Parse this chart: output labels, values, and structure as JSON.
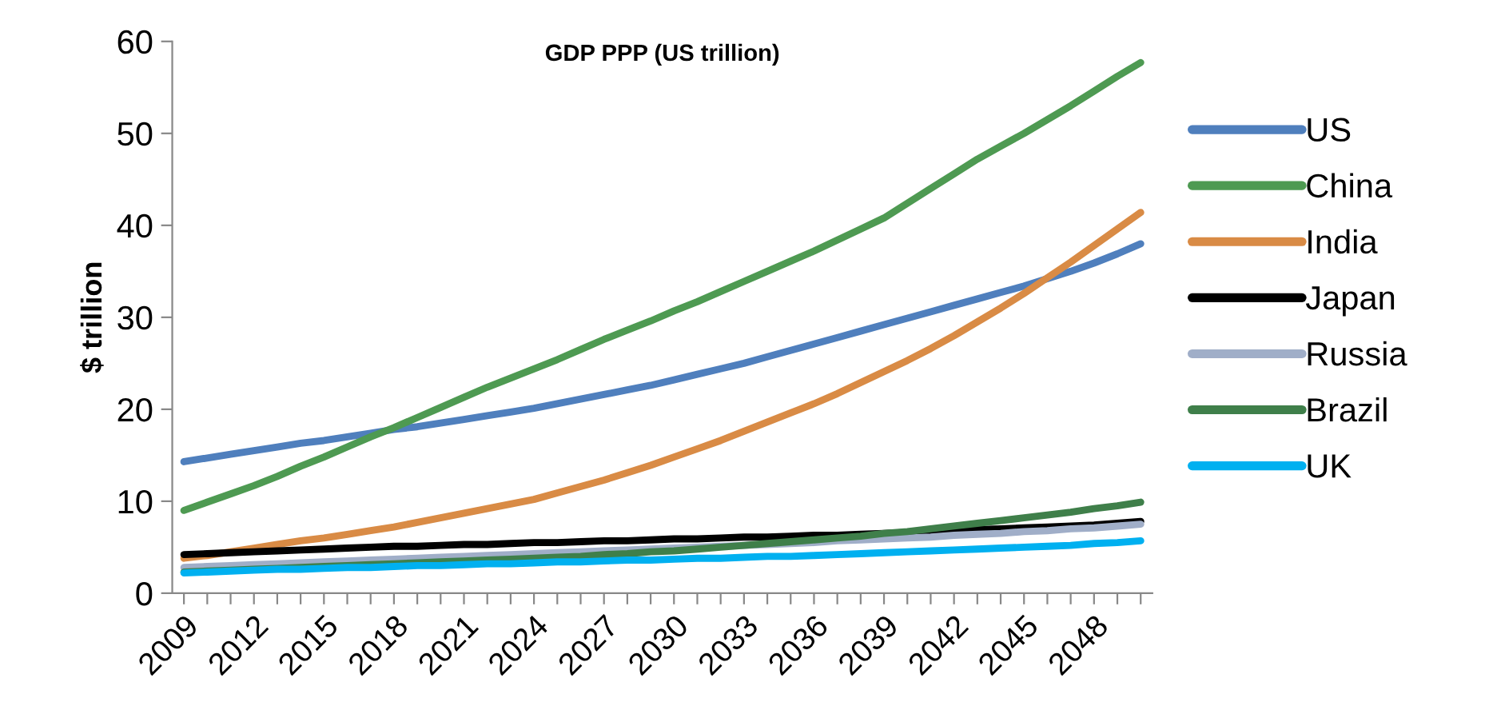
{
  "chart_data": {
    "type": "line",
    "title": "GDP PPP (US trillion)",
    "ylabel": "$ trillion",
    "categories": [
      "2009",
      null,
      null,
      "2012",
      null,
      null,
      "2015",
      null,
      null,
      "2018",
      null,
      null,
      "2021",
      null,
      null,
      "2024",
      null,
      null,
      "2027",
      null,
      null,
      "2030",
      null,
      null,
      "2033",
      null,
      null,
      "2036",
      null,
      null,
      "2039",
      null,
      null,
      "2042",
      null,
      null,
      "2045",
      null,
      null,
      "2048",
      null,
      null
    ],
    "ylim": [
      0,
      60
    ],
    "yticks": [
      0,
      10,
      20,
      30,
      40,
      50,
      60
    ],
    "grid": false,
    "legend": "right",
    "marker": "none",
    "line_style": "solid",
    "series": [
      {
        "name": "US",
        "color": "#4f7fbd",
        "values": [
          14.3,
          14.7,
          15.1,
          15.5,
          15.9,
          16.3,
          16.6,
          17.0,
          17.4,
          17.8,
          18.1,
          18.5,
          18.9,
          19.3,
          19.7,
          20.1,
          20.6,
          21.1,
          21.6,
          22.1,
          22.6,
          23.2,
          23.8,
          24.4,
          25.0,
          25.7,
          26.4,
          27.1,
          27.8,
          28.5,
          29.2,
          29.9,
          30.6,
          31.3,
          32.0,
          32.7,
          33.4,
          34.2,
          35.0,
          35.9,
          36.9,
          38.0
        ]
      },
      {
        "name": "China",
        "color": "#4e9a52",
        "values": [
          9.0,
          9.9,
          10.8,
          11.7,
          12.7,
          13.8,
          14.8,
          15.9,
          17.0,
          18.0,
          19.1,
          20.2,
          21.3,
          22.4,
          23.4,
          24.4,
          25.4,
          26.5,
          27.6,
          28.6,
          29.6,
          30.7,
          31.7,
          32.8,
          33.9,
          35.0,
          36.1,
          37.2,
          38.4,
          39.6,
          40.8,
          42.4,
          44.0,
          45.6,
          47.2,
          48.6,
          50.0,
          51.5,
          53.0,
          54.6,
          56.2,
          57.7
        ]
      },
      {
        "name": "India",
        "color": "#d98b45",
        "values": [
          3.8,
          4.1,
          4.5,
          4.9,
          5.3,
          5.7,
          6.0,
          6.4,
          6.8,
          7.2,
          7.7,
          8.2,
          8.7,
          9.2,
          9.7,
          10.2,
          10.9,
          11.6,
          12.3,
          13.1,
          13.9,
          14.8,
          15.7,
          16.6,
          17.6,
          18.6,
          19.6,
          20.6,
          21.7,
          22.9,
          24.1,
          25.3,
          26.6,
          28.0,
          29.5,
          31.0,
          32.6,
          34.3,
          36.0,
          37.8,
          39.6,
          41.4
        ]
      },
      {
        "name": "Japan",
        "color": "#000000",
        "values": [
          4.2,
          4.3,
          4.4,
          4.5,
          4.6,
          4.7,
          4.8,
          4.9,
          5.0,
          5.1,
          5.1,
          5.2,
          5.3,
          5.3,
          5.4,
          5.5,
          5.5,
          5.6,
          5.7,
          5.7,
          5.8,
          5.9,
          5.9,
          6.0,
          6.1,
          6.1,
          6.2,
          6.3,
          6.3,
          6.4,
          6.5,
          6.6,
          6.7,
          6.8,
          6.9,
          7.0,
          7.1,
          7.2,
          7.3,
          7.4,
          7.6,
          7.8
        ]
      },
      {
        "name": "Russia",
        "color": "#a0aec8",
        "values": [
          2.8,
          2.9,
          3.0,
          3.1,
          3.2,
          3.3,
          3.4,
          3.5,
          3.6,
          3.7,
          3.8,
          3.9,
          4.0,
          4.1,
          4.2,
          4.3,
          4.4,
          4.5,
          4.6,
          4.7,
          4.8,
          4.9,
          5.0,
          5.1,
          5.2,
          5.3,
          5.4,
          5.5,
          5.7,
          5.8,
          5.9,
          6.0,
          6.1,
          6.3,
          6.4,
          6.5,
          6.7,
          6.8,
          7.0,
          7.1,
          7.3,
          7.5
        ]
      },
      {
        "name": "Brazil",
        "color": "#3f7f4a",
        "values": [
          2.3,
          2.4,
          2.5,
          2.6,
          2.7,
          2.8,
          2.9,
          3.0,
          3.1,
          3.2,
          3.3,
          3.4,
          3.5,
          3.6,
          3.7,
          3.8,
          3.9,
          4.0,
          4.2,
          4.3,
          4.5,
          4.6,
          4.8,
          5.0,
          5.2,
          5.4,
          5.6,
          5.8,
          6.0,
          6.2,
          6.5,
          6.7,
          7.0,
          7.3,
          7.6,
          7.9,
          8.2,
          8.5,
          8.8,
          9.2,
          9.5,
          9.9
        ]
      },
      {
        "name": "UK",
        "color": "#00b0f0",
        "values": [
          2.2,
          2.3,
          2.4,
          2.5,
          2.6,
          2.6,
          2.7,
          2.8,
          2.8,
          2.9,
          3.0,
          3.0,
          3.1,
          3.2,
          3.2,
          3.3,
          3.4,
          3.4,
          3.5,
          3.6,
          3.6,
          3.7,
          3.8,
          3.8,
          3.9,
          4.0,
          4.0,
          4.1,
          4.2,
          4.3,
          4.4,
          4.5,
          4.6,
          4.7,
          4.8,
          4.9,
          5.0,
          5.1,
          5.2,
          5.4,
          5.5,
          5.7
        ]
      }
    ]
  }
}
